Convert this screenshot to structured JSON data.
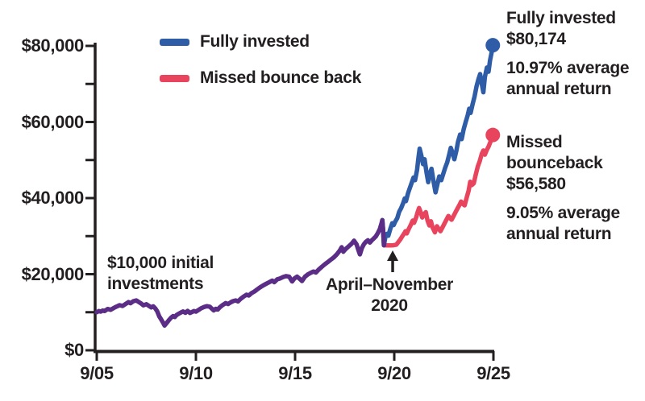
{
  "chart_data": {
    "type": "line",
    "title": "",
    "xlabel": "",
    "ylabel": "",
    "x_range": [
      2005.75,
      2025.75
    ],
    "y_range": [
      0,
      80000
    ],
    "grid": false,
    "x_ticks": [
      {
        "label": "9/05",
        "year": 2005.75
      },
      {
        "label": "9/10",
        "year": 2010.75
      },
      {
        "label": "9/15",
        "year": 2015.75
      },
      {
        "label": "9/20",
        "year": 2020.75
      },
      {
        "label": "9/25",
        "year": 2025.75
      }
    ],
    "y_ticks": [
      {
        "label": "$80,000",
        "value": 80000
      },
      {
        "label": "$60,000",
        "value": 60000
      },
      {
        "label": "$40,000",
        "value": 40000
      },
      {
        "label": "$20,000",
        "value": 20000
      },
      {
        "label": "$0",
        "value": 0
      }
    ],
    "y_minor_ticks": [
      70000,
      50000,
      30000,
      10000
    ],
    "legend": [
      {
        "label": "Fully invested",
        "color": "#2e5ca6"
      },
      {
        "label": "Missed bounce back",
        "color": "#e9445e"
      }
    ],
    "colors": {
      "combined": "#5b2d86",
      "fully_invested": "#2e5ca6",
      "missed_bounce_back": "#e9445e",
      "axis": "#231f20",
      "text": "#231f20"
    },
    "series": [
      {
        "name": "Both portfolios (overlapping)",
        "key": "combined",
        "color": "#5b2d86",
        "end_dot": false,
        "points": [
          [
            2005.75,
            10000
          ],
          [
            2005.85,
            10300
          ],
          [
            2005.95,
            10150
          ],
          [
            2006.05,
            10450
          ],
          [
            2006.15,
            10300
          ],
          [
            2006.3,
            10850
          ],
          [
            2006.45,
            10650
          ],
          [
            2006.6,
            11100
          ],
          [
            2006.75,
            11500
          ],
          [
            2006.9,
            11850
          ],
          [
            2007.05,
            11650
          ],
          [
            2007.2,
            12150
          ],
          [
            2007.35,
            12650
          ],
          [
            2007.45,
            12350
          ],
          [
            2007.6,
            12900
          ],
          [
            2007.75,
            13100
          ],
          [
            2007.85,
            12750
          ],
          [
            2008.0,
            12250
          ],
          [
            2008.1,
            11800
          ],
          [
            2008.25,
            12100
          ],
          [
            2008.4,
            11600
          ],
          [
            2008.5,
            11250
          ],
          [
            2008.6,
            11550
          ],
          [
            2008.7,
            11000
          ],
          [
            2008.8,
            10250
          ],
          [
            2008.9,
            8900
          ],
          [
            2009.0,
            8100
          ],
          [
            2009.1,
            7200
          ],
          [
            2009.17,
            6500
          ],
          [
            2009.28,
            7200
          ],
          [
            2009.4,
            8000
          ],
          [
            2009.5,
            8600
          ],
          [
            2009.6,
            9000
          ],
          [
            2009.68,
            8750
          ],
          [
            2009.78,
            9300
          ],
          [
            2009.9,
            9650
          ],
          [
            2010.0,
            9950
          ],
          [
            2010.1,
            10200
          ],
          [
            2010.22,
            9850
          ],
          [
            2010.33,
            10350
          ],
          [
            2010.45,
            9800
          ],
          [
            2010.55,
            10050
          ],
          [
            2010.65,
            10300
          ],
          [
            2010.75,
            10150
          ],
          [
            2010.9,
            10650
          ],
          [
            2011.0,
            11000
          ],
          [
            2011.15,
            11350
          ],
          [
            2011.3,
            11600
          ],
          [
            2011.45,
            11450
          ],
          [
            2011.55,
            10950
          ],
          [
            2011.65,
            10500
          ],
          [
            2011.75,
            10900
          ],
          [
            2011.85,
            10700
          ],
          [
            2011.95,
            11250
          ],
          [
            2012.1,
            11900
          ],
          [
            2012.25,
            12400
          ],
          [
            2012.37,
            12150
          ],
          [
            2012.5,
            12600
          ],
          [
            2012.62,
            12900
          ],
          [
            2012.75,
            13100
          ],
          [
            2012.87,
            12850
          ],
          [
            2013.0,
            13500
          ],
          [
            2013.15,
            14100
          ],
          [
            2013.3,
            14600
          ],
          [
            2013.42,
            14400
          ],
          [
            2013.55,
            15000
          ],
          [
            2013.7,
            15450
          ],
          [
            2013.85,
            16050
          ],
          [
            2014.0,
            16600
          ],
          [
            2014.15,
            17050
          ],
          [
            2014.3,
            17500
          ],
          [
            2014.45,
            17900
          ],
          [
            2014.6,
            18300
          ],
          [
            2014.7,
            17900
          ],
          [
            2014.85,
            18650
          ],
          [
            2015.0,
            18900
          ],
          [
            2015.15,
            19250
          ],
          [
            2015.3,
            19500
          ],
          [
            2015.45,
            19350
          ],
          [
            2015.6,
            18100
          ],
          [
            2015.72,
            18900
          ],
          [
            2015.85,
            19350
          ],
          [
            2016.0,
            18700
          ],
          [
            2016.1,
            18200
          ],
          [
            2016.25,
            19350
          ],
          [
            2016.4,
            19950
          ],
          [
            2016.55,
            20400
          ],
          [
            2016.68,
            20700
          ],
          [
            2016.8,
            20450
          ],
          [
            2016.95,
            21250
          ],
          [
            2017.1,
            21950
          ],
          [
            2017.25,
            22600
          ],
          [
            2017.4,
            23200
          ],
          [
            2017.55,
            23800
          ],
          [
            2017.7,
            24400
          ],
          [
            2017.85,
            25200
          ],
          [
            2018.0,
            26200
          ],
          [
            2018.1,
            27100
          ],
          [
            2018.18,
            25900
          ],
          [
            2018.3,
            26600
          ],
          [
            2018.45,
            27300
          ],
          [
            2018.6,
            28000
          ],
          [
            2018.72,
            28800
          ],
          [
            2018.85,
            27800
          ],
          [
            2018.95,
            26200
          ],
          [
            2019.02,
            25200
          ],
          [
            2019.12,
            26900
          ],
          [
            2019.22,
            27900
          ],
          [
            2019.32,
            28500
          ],
          [
            2019.42,
            28900
          ],
          [
            2019.52,
            28300
          ],
          [
            2019.62,
            28900
          ],
          [
            2019.72,
            29400
          ],
          [
            2019.82,
            29900
          ],
          [
            2019.92,
            30800
          ],
          [
            2020.02,
            31800
          ],
          [
            2020.1,
            33200
          ],
          [
            2020.15,
            34200
          ],
          [
            2020.19,
            31500
          ],
          [
            2020.23,
            27600
          ]
        ]
      },
      {
        "name": "Fully invested",
        "key": "fully_invested",
        "color": "#2e5ca6",
        "end_dot": true,
        "end_value": 80174,
        "points": [
          [
            2020.15,
            34200
          ],
          [
            2020.19,
            31500
          ],
          [
            2020.23,
            27600
          ],
          [
            2020.3,
            29700
          ],
          [
            2020.38,
            30600
          ],
          [
            2020.45,
            30100
          ],
          [
            2020.55,
            31900
          ],
          [
            2020.65,
            33400
          ],
          [
            2020.72,
            32900
          ],
          [
            2020.8,
            33800
          ],
          [
            2020.9,
            34700
          ],
          [
            2021.0,
            36400
          ],
          [
            2021.1,
            37400
          ],
          [
            2021.2,
            38700
          ],
          [
            2021.28,
            39900
          ],
          [
            2021.34,
            39200
          ],
          [
            2021.44,
            41200
          ],
          [
            2021.54,
            42700
          ],
          [
            2021.64,
            44200
          ],
          [
            2021.72,
            45400
          ],
          [
            2021.8,
            44700
          ],
          [
            2021.9,
            47400
          ],
          [
            2021.97,
            50600
          ],
          [
            2022.03,
            53000
          ],
          [
            2022.12,
            51100
          ],
          [
            2022.2,
            48900
          ],
          [
            2022.28,
            50200
          ],
          [
            2022.37,
            46900
          ],
          [
            2022.46,
            44200
          ],
          [
            2022.54,
            46300
          ],
          [
            2022.63,
            47700
          ],
          [
            2022.73,
            44400
          ],
          [
            2022.83,
            41500
          ],
          [
            2022.93,
            43700
          ],
          [
            2023.02,
            45700
          ],
          [
            2023.12,
            44700
          ],
          [
            2023.22,
            46400
          ],
          [
            2023.32,
            48000
          ],
          [
            2023.42,
            49400
          ],
          [
            2023.52,
            51400
          ],
          [
            2023.6,
            53200
          ],
          [
            2023.7,
            51700
          ],
          [
            2023.78,
            50200
          ],
          [
            2023.88,
            52400
          ],
          [
            2023.97,
            54900
          ],
          [
            2024.07,
            56700
          ],
          [
            2024.15,
            55500
          ],
          [
            2024.25,
            58100
          ],
          [
            2024.35,
            60000
          ],
          [
            2024.45,
            61700
          ],
          [
            2024.53,
            63500
          ],
          [
            2024.6,
            62400
          ],
          [
            2024.7,
            64700
          ],
          [
            2024.8,
            66700
          ],
          [
            2024.9,
            69400
          ],
          [
            2025.0,
            71300
          ],
          [
            2025.08,
            72600
          ],
          [
            2025.16,
            70100
          ],
          [
            2025.24,
            67800
          ],
          [
            2025.32,
            71800
          ],
          [
            2025.42,
            74300
          ],
          [
            2025.5,
            73200
          ],
          [
            2025.58,
            76200
          ],
          [
            2025.66,
            78300
          ],
          [
            2025.72,
            80174
          ]
        ]
      },
      {
        "name": "Missed bounce back",
        "key": "missed_bounce_back",
        "color": "#e9445e",
        "end_dot": true,
        "end_value": 56580,
        "points": [
          [
            2020.23,
            27600
          ],
          [
            2020.4,
            27550
          ],
          [
            2020.55,
            27550
          ],
          [
            2020.7,
            27600
          ],
          [
            2020.85,
            27750
          ],
          [
            2020.95,
            28400
          ],
          [
            2021.05,
            29100
          ],
          [
            2021.15,
            29900
          ],
          [
            2021.25,
            30700
          ],
          [
            2021.32,
            31300
          ],
          [
            2021.38,
            30700
          ],
          [
            2021.48,
            31900
          ],
          [
            2021.58,
            32900
          ],
          [
            2021.68,
            34100
          ],
          [
            2021.75,
            33500
          ],
          [
            2021.85,
            34900
          ],
          [
            2021.93,
            36300
          ],
          [
            2022.0,
            37400
          ],
          [
            2022.08,
            36300
          ],
          [
            2022.16,
            34900
          ],
          [
            2022.26,
            35800
          ],
          [
            2022.34,
            36300
          ],
          [
            2022.43,
            34100
          ],
          [
            2022.52,
            32800
          ],
          [
            2022.6,
            33900
          ],
          [
            2022.68,
            32300
          ],
          [
            2022.8,
            31000
          ],
          [
            2022.9,
            32600
          ],
          [
            2023.0,
            31800
          ],
          [
            2023.08,
            31300
          ],
          [
            2023.18,
            32300
          ],
          [
            2023.28,
            33300
          ],
          [
            2023.38,
            34300
          ],
          [
            2023.48,
            35300
          ],
          [
            2023.56,
            34700
          ],
          [
            2023.64,
            34300
          ],
          [
            2023.74,
            35300
          ],
          [
            2023.84,
            36300
          ],
          [
            2023.94,
            37300
          ],
          [
            2024.04,
            38200
          ],
          [
            2024.12,
            39100
          ],
          [
            2024.22,
            38400
          ],
          [
            2024.3,
            38100
          ],
          [
            2024.4,
            40100
          ],
          [
            2024.5,
            42000
          ],
          [
            2024.58,
            44300
          ],
          [
            2024.66,
            43400
          ],
          [
            2024.76,
            43900
          ],
          [
            2024.86,
            46200
          ],
          [
            2024.96,
            48300
          ],
          [
            2025.06,
            49700
          ],
          [
            2025.16,
            51600
          ],
          [
            2025.24,
            52500
          ],
          [
            2025.32,
            51400
          ],
          [
            2025.42,
            52700
          ],
          [
            2025.5,
            53500
          ],
          [
            2025.6,
            54800
          ],
          [
            2025.72,
            56580
          ]
        ]
      }
    ],
    "annotations": {
      "initial_line1": "$10,000 initial",
      "initial_line2": "investments",
      "period_line1": "April–November",
      "period_line2": "2020",
      "period_arrow_year": 2020.67,
      "fully_invested": {
        "title": "Fully invested",
        "value": "$80,174",
        "return_line1": "10.97% average",
        "return_line2": "annual return"
      },
      "missed": {
        "title_line1": "Missed",
        "title_line2": "bounceback",
        "value": "$56,580",
        "return_line1": "9.05% average",
        "return_line2": "annual return"
      }
    }
  }
}
